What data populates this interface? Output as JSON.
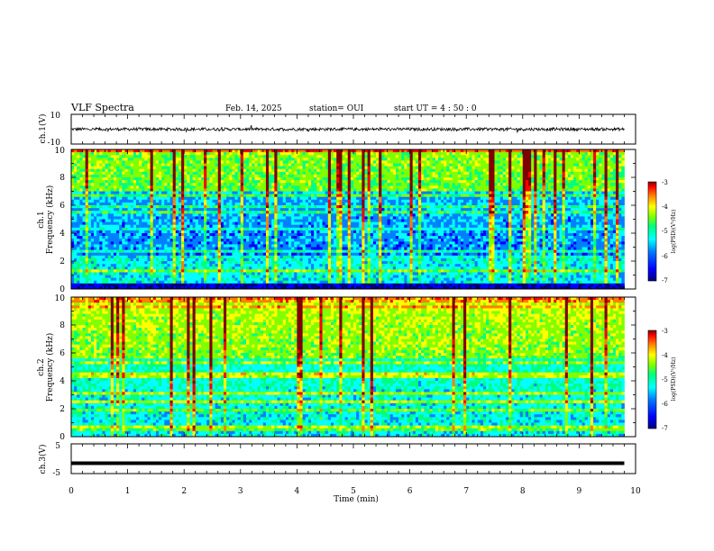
{
  "header": {
    "title": "VLF Spectra",
    "date": "Feb. 14, 2025",
    "station": "station= OUI",
    "start": "start  UT =  4 : 50 : 0"
  },
  "colors": {
    "background": "#ffffff",
    "axes": "#000000",
    "colormap": [
      "#000080",
      "#0000ff",
      "#0080ff",
      "#00ffff",
      "#00ff80",
      "#80ff00",
      "#ffff00",
      "#ff8000",
      "#ff0000",
      "#800000"
    ]
  },
  "chart_data": [
    {
      "id": "ch1-waveform",
      "type": "line",
      "ylabel": "ch.1(V)",
      "ylim": [
        -10,
        10
      ],
      "yticks": [
        "10",
        "-10"
      ],
      "xlim": [
        0,
        10
      ],
      "trace_level": 0,
      "trace_amplitude": 1,
      "data_end": 9.8,
      "grid": false
    },
    {
      "id": "ch1-spectrogram",
      "type": "heatmap",
      "ylabel_channel": "ch.1",
      "ylabel": "Frequency  (kHz)",
      "ylim": [
        0,
        10
      ],
      "yticks": [
        "0",
        "2",
        "4",
        "6",
        "8",
        "10"
      ],
      "xlim": [
        0,
        10
      ],
      "data_end": 9.8,
      "colorbar": {
        "label": "log(PSD)(V²/Hz)",
        "range": [
          -7,
          -3
        ],
        "ticks": [
          "-3",
          "-4",
          "-5",
          "-6",
          "-7"
        ]
      }
    },
    {
      "id": "ch2-spectrogram",
      "type": "heatmap",
      "ylabel_channel": "ch.2",
      "ylabel": "Frequency  (kHz)",
      "ylim": [
        0,
        10
      ],
      "yticks": [
        "0",
        "2",
        "4",
        "6",
        "8",
        "10"
      ],
      "xlim": [
        0,
        10
      ],
      "data_end": 9.8,
      "colorbar": {
        "label": "log(PSD)(V²/Hz)",
        "range": [
          -7,
          -3
        ],
        "ticks": [
          "-3",
          "-4",
          "-5",
          "-6",
          "-7"
        ]
      }
    },
    {
      "id": "ch3-waveform",
      "type": "line",
      "ylabel": "ch.3(V)",
      "ylim": [
        -5,
        5
      ],
      "yticks": [
        "5",
        "-5"
      ],
      "xlim": [
        0,
        10
      ],
      "trace_level": -1.5,
      "data_end": 9.8,
      "grid": false
    }
  ],
  "xaxis": {
    "label": "Time  (min)",
    "ticks": [
      "0",
      "1",
      "2",
      "3",
      "4",
      "5",
      "6",
      "7",
      "8",
      "9",
      "10"
    ]
  }
}
